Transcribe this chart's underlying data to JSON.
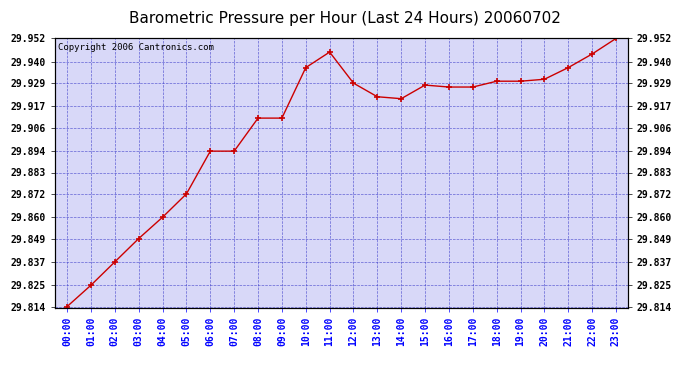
{
  "title": "Barometric Pressure per Hour (Last 24 Hours) 20060702",
  "copyright_text": "Copyright 2006 Cantronics.com",
  "hours": [
    "00:00",
    "01:00",
    "02:00",
    "03:00",
    "04:00",
    "05:00",
    "06:00",
    "07:00",
    "08:00",
    "09:00",
    "10:00",
    "11:00",
    "12:00",
    "13:00",
    "14:00",
    "15:00",
    "16:00",
    "17:00",
    "18:00",
    "19:00",
    "20:00",
    "21:00",
    "22:00",
    "23:00"
  ],
  "values": [
    29.814,
    29.825,
    29.837,
    29.849,
    29.86,
    29.872,
    29.894,
    29.894,
    29.911,
    29.911,
    29.937,
    29.945,
    29.929,
    29.922,
    29.921,
    29.928,
    29.927,
    29.927,
    29.93,
    29.93,
    29.931,
    29.937,
    29.944,
    29.952
  ],
  "yticks": [
    29.814,
    29.825,
    29.837,
    29.849,
    29.86,
    29.872,
    29.883,
    29.894,
    29.906,
    29.917,
    29.929,
    29.94,
    29.952
  ],
  "ylim_min": 29.814,
  "ylim_max": 29.952,
  "line_color": "#cc0000",
  "marker_color": "#cc0000",
  "bg_color": "#ffffff",
  "plot_bg_color": "#d8d8f8",
  "grid_color": "#4444cc",
  "title_fontsize": 11,
  "tick_fontsize": 7,
  "copyright_fontsize": 6.5
}
